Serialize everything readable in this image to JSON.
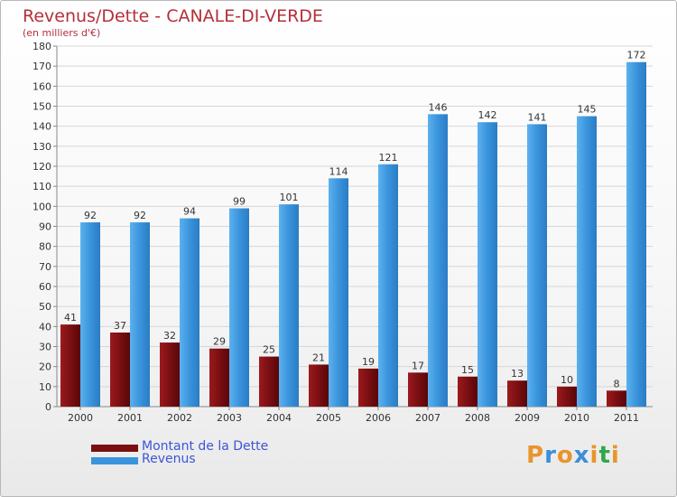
{
  "colors": {
    "dette": "#7a0f12",
    "revenus": "#3a94dc",
    "title": "#b4303a",
    "legend_text": "#3b55d9"
  },
  "logo": {
    "text": "Proxiti",
    "letter_colors": [
      "#e8952b",
      "#3a8fd8",
      "#e8952b",
      "#3a8fd8",
      "#e8952b",
      "#2fa84a",
      "#e8952b"
    ]
  },
  "chart_data": {
    "type": "bar",
    "title": "Revenus/Dette - CANALE-DI-VERDE",
    "subtitle": "(en milliers d'€)",
    "categories": [
      "2000",
      "2001",
      "2002",
      "2003",
      "2004",
      "2005",
      "2006",
      "2007",
      "2008",
      "2009",
      "2010",
      "2011"
    ],
    "series": [
      {
        "name": "Montant de la Dette",
        "values": [
          41,
          37,
          32,
          29,
          25,
          21,
          19,
          17,
          15,
          13,
          10,
          8
        ]
      },
      {
        "name": "Revenus",
        "values": [
          92,
          92,
          94,
          99,
          101,
          114,
          121,
          146,
          142,
          141,
          145,
          172
        ]
      }
    ],
    "ylim": [
      0,
      180
    ],
    "yticks": [
      0,
      10,
      20,
      30,
      40,
      50,
      60,
      70,
      80,
      90,
      100,
      110,
      120,
      130,
      140,
      150,
      160,
      170,
      180
    ],
    "grid": true,
    "legend_position": "bottom-left"
  }
}
